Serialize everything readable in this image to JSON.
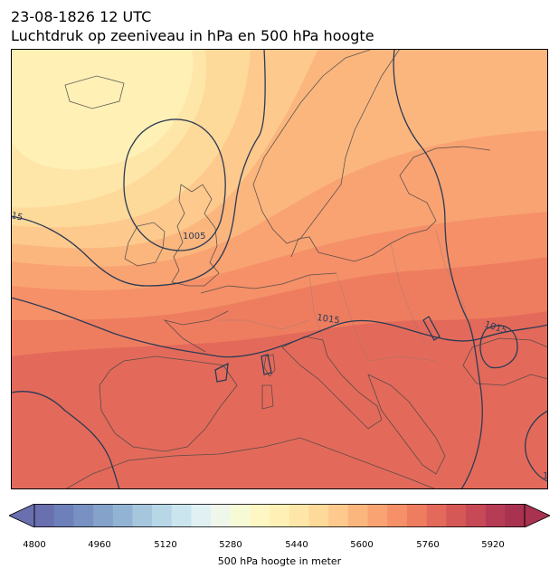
{
  "header": {
    "datetime": "23-08-1826 12 UTC",
    "subtitle": "Luchtdruk op zeeniveau in hPa en 500 hPa hoogte"
  },
  "map": {
    "region": "Europe",
    "isobar_labels": [
      "1005",
      "1015",
      "1015",
      "15",
      "1"
    ],
    "isobar_color": "#2b3a55",
    "coastline_color": "#444444"
  },
  "colorbar": {
    "label": "500 hPa hoogte in meter",
    "ticks": [
      "4800",
      "4960",
      "5120",
      "5280",
      "5440",
      "5600",
      "5760",
      "5920"
    ],
    "colors": [
      "#6a6fb0",
      "#6e80ba",
      "#7890c2",
      "#84a2ca",
      "#93b3d4",
      "#a5c6dd",
      "#b7d6e6",
      "#cbe5ef",
      "#e0f0f3",
      "#eef7ea",
      "#f7fbd5",
      "#fff7c3",
      "#fff0b6",
      "#fee6a8",
      "#fdd99a",
      "#fdc98c",
      "#fbb67e",
      "#f9a372",
      "#f59068",
      "#ee7d60",
      "#e36a5a",
      "#d65856",
      "#c74956",
      "#b63c55",
      "#a8324f"
    ],
    "over_color": "#a8324f",
    "under_color": "#6a6fb0"
  }
}
